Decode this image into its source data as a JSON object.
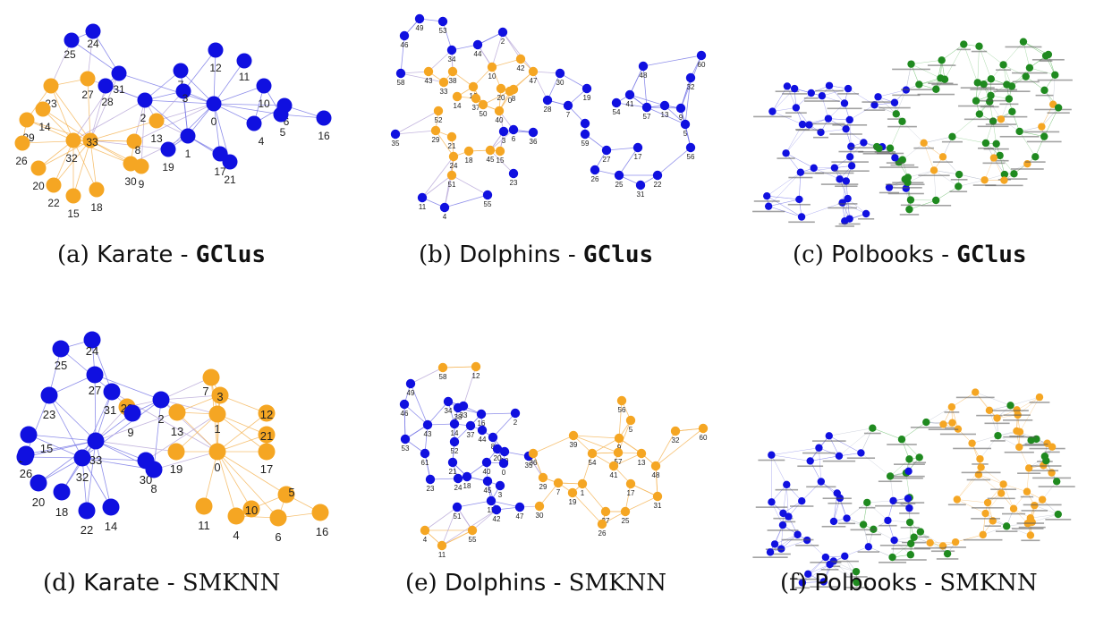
{
  "colors": {
    "blue": "#1010e0",
    "orange": "#f5a623",
    "green": "#1f8a1f",
    "blue_edge": "#7a7ae6",
    "orange_edge": "#f5b65a",
    "green_edge": "#6fbf6f"
  },
  "panels": [
    {
      "id": "a",
      "tag": "(a)",
      "dataset": "Karate",
      "sep": " - ",
      "method": "GClus",
      "method_style": "mono"
    },
    {
      "id": "b",
      "tag": "(b)",
      "dataset": "Dolphins",
      "sep": " - ",
      "method": "GClus",
      "method_style": "mono"
    },
    {
      "id": "c",
      "tag": "(c)",
      "dataset": "Polbooks",
      "sep": " - ",
      "method": "GClus",
      "method_style": "mono"
    },
    {
      "id": "d",
      "tag": "(d)",
      "dataset": "Karate",
      "sep": " - ",
      "method": "SMKNN",
      "method_style": "serif"
    },
    {
      "id": "e",
      "tag": "(e)",
      "dataset": "Dolphins",
      "sep": " - ",
      "method": "SMKNN",
      "method_style": "serif"
    },
    {
      "id": "f",
      "tag": "(f)",
      "dataset": "Polbooks",
      "sep": " - ",
      "method": "SMKNN",
      "method_style": "serif"
    }
  ],
  "karate_gclus": {
    "nodes": [
      {
        "id": "24",
        "c": "blue"
      },
      {
        "id": "25",
        "c": "blue"
      },
      {
        "id": "12",
        "c": "blue"
      },
      {
        "id": "11",
        "c": "blue"
      },
      {
        "id": "27",
        "c": "orange"
      },
      {
        "id": "31",
        "c": "blue"
      },
      {
        "id": "28",
        "c": "blue"
      },
      {
        "id": "23",
        "c": "orange"
      },
      {
        "id": "7",
        "c": "blue"
      },
      {
        "id": "3",
        "c": "blue"
      },
      {
        "id": "10",
        "c": "blue"
      },
      {
        "id": "6",
        "c": "blue"
      },
      {
        "id": "14",
        "c": "orange"
      },
      {
        "id": "2",
        "c": "blue"
      },
      {
        "id": "0",
        "c": "blue"
      },
      {
        "id": "5",
        "c": "blue"
      },
      {
        "id": "29",
        "c": "orange"
      },
      {
        "id": "13",
        "c": "orange"
      },
      {
        "id": "16",
        "c": "blue"
      },
      {
        "id": "4",
        "c": "blue"
      },
      {
        "id": "26",
        "c": "orange"
      },
      {
        "id": "32",
        "c": "orange"
      },
      {
        "id": "33",
        "c": "orange"
      },
      {
        "id": "8",
        "c": "orange"
      },
      {
        "id": "1",
        "c": "blue"
      },
      {
        "id": "19",
        "c": "blue"
      },
      {
        "id": "17",
        "c": "blue"
      },
      {
        "id": "30",
        "c": "orange"
      },
      {
        "id": "9",
        "c": "orange"
      },
      {
        "id": "21",
        "c": "blue"
      },
      {
        "id": "20",
        "c": "orange"
      },
      {
        "id": "22",
        "c": "orange"
      },
      {
        "id": "15",
        "c": "orange"
      },
      {
        "id": "18",
        "c": "orange"
      }
    ]
  },
  "karate_smknn": {
    "nodes": [
      {
        "id": "24",
        "c": "blue"
      },
      {
        "id": "25",
        "c": "blue"
      },
      {
        "id": "27",
        "c": "blue"
      },
      {
        "id": "31",
        "c": "blue"
      },
      {
        "id": "28",
        "c": "orange"
      },
      {
        "id": "2",
        "c": "blue"
      },
      {
        "id": "7",
        "c": "orange"
      },
      {
        "id": "3",
        "c": "orange"
      },
      {
        "id": "23",
        "c": "blue"
      },
      {
        "id": "9",
        "c": "blue"
      },
      {
        "id": "13",
        "c": "orange"
      },
      {
        "id": "1",
        "c": "orange"
      },
      {
        "id": "12",
        "c": "orange"
      },
      {
        "id": "21",
        "c": "orange"
      },
      {
        "id": "15",
        "c": "blue"
      },
      {
        "id": "29",
        "c": "blue"
      },
      {
        "id": "26",
        "c": "blue"
      },
      {
        "id": "33",
        "c": "blue"
      },
      {
        "id": "32",
        "c": "blue"
      },
      {
        "id": "30",
        "c": "blue"
      },
      {
        "id": "8",
        "c": "blue"
      },
      {
        "id": "19",
        "c": "orange"
      },
      {
        "id": "0",
        "c": "orange"
      },
      {
        "id": "17",
        "c": "orange"
      },
      {
        "id": "20",
        "c": "blue"
      },
      {
        "id": "18",
        "c": "blue"
      },
      {
        "id": "22",
        "c": "blue"
      },
      {
        "id": "14",
        "c": "blue"
      },
      {
        "id": "11",
        "c": "orange"
      },
      {
        "id": "4",
        "c": "orange"
      },
      {
        "id": "10",
        "c": "orange"
      },
      {
        "id": "6",
        "c": "orange"
      },
      {
        "id": "5",
        "c": "orange"
      },
      {
        "id": "16",
        "c": "orange"
      }
    ]
  },
  "dolphins_gclus": {
    "nodes": [
      {
        "id": "49",
        "c": "blue"
      },
      {
        "id": "53",
        "c": "blue"
      },
      {
        "id": "46",
        "c": "blue"
      },
      {
        "id": "2",
        "c": "blue"
      },
      {
        "id": "44",
        "c": "blue"
      },
      {
        "id": "34",
        "c": "blue"
      },
      {
        "id": "60",
        "c": "blue"
      },
      {
        "id": "48",
        "c": "blue"
      },
      {
        "id": "58",
        "c": "blue"
      },
      {
        "id": "43",
        "c": "orange"
      },
      {
        "id": "38",
        "c": "orange"
      },
      {
        "id": "10",
        "c": "orange"
      },
      {
        "id": "42",
        "c": "orange"
      },
      {
        "id": "47",
        "c": "orange"
      },
      {
        "id": "30",
        "c": "blue"
      },
      {
        "id": "32",
        "c": "blue"
      },
      {
        "id": "33",
        "c": "orange"
      },
      {
        "id": "16",
        "c": "orange"
      },
      {
        "id": "20",
        "c": "orange"
      },
      {
        "id": "8",
        "c": "orange"
      },
      {
        "id": "19",
        "c": "blue"
      },
      {
        "id": "14",
        "c": "orange"
      },
      {
        "id": "37",
        "c": "orange"
      },
      {
        "id": "50",
        "c": "orange"
      },
      {
        "id": "40",
        "c": "orange"
      },
      {
        "id": "28",
        "c": "blue"
      },
      {
        "id": "7",
        "c": "blue"
      },
      {
        "id": "54",
        "c": "blue"
      },
      {
        "id": "41",
        "c": "blue"
      },
      {
        "id": "57",
        "c": "blue"
      },
      {
        "id": "13",
        "c": "blue"
      },
      {
        "id": "9",
        "c": "blue"
      },
      {
        "id": "52",
        "c": "orange"
      },
      {
        "id": "29",
        "c": "orange"
      },
      {
        "id": "3",
        "c": "blue"
      },
      {
        "id": "1",
        "c": "blue"
      },
      {
        "id": "5",
        "c": "blue"
      },
      {
        "id": "35",
        "c": "blue"
      },
      {
        "id": "21",
        "c": "orange"
      },
      {
        "id": "6",
        "c": "blue"
      },
      {
        "id": "36",
        "c": "blue"
      },
      {
        "id": "24",
        "c": "orange"
      },
      {
        "id": "18",
        "c": "orange"
      },
      {
        "id": "45",
        "c": "orange"
      },
      {
        "id": "15",
        "c": "orange"
      },
      {
        "id": "27",
        "c": "blue"
      },
      {
        "id": "17",
        "c": "blue"
      },
      {
        "id": "56",
        "c": "blue"
      },
      {
        "id": "59",
        "c": "blue"
      },
      {
        "id": "26",
        "c": "blue"
      },
      {
        "id": "25",
        "c": "blue"
      },
      {
        "id": "22",
        "c": "blue"
      },
      {
        "id": "51",
        "c": "orange"
      },
      {
        "id": "23",
        "c": "blue"
      },
      {
        "id": "31",
        "c": "blue"
      },
      {
        "id": "11",
        "c": "blue"
      },
      {
        "id": "55",
        "c": "blue"
      },
      {
        "id": "4",
        "c": "blue"
      },
      {
        "id": "0",
        "c": "orange"
      }
    ]
  },
  "dolphins_smknn": {
    "nodes": [
      {
        "id": "58",
        "c": "orange"
      },
      {
        "id": "12",
        "c": "orange"
      },
      {
        "id": "49",
        "c": "blue"
      },
      {
        "id": "46",
        "c": "blue"
      },
      {
        "id": "34",
        "c": "blue"
      },
      {
        "id": "38",
        "c": "blue"
      },
      {
        "id": "33",
        "c": "blue"
      },
      {
        "id": "16",
        "c": "blue"
      },
      {
        "id": "2",
        "c": "blue"
      },
      {
        "id": "56",
        "c": "orange"
      },
      {
        "id": "43",
        "c": "blue"
      },
      {
        "id": "14",
        "c": "blue"
      },
      {
        "id": "37",
        "c": "blue"
      },
      {
        "id": "44",
        "c": "blue"
      },
      {
        "id": "5",
        "c": "orange"
      },
      {
        "id": "53",
        "c": "blue"
      },
      {
        "id": "52",
        "c": "blue"
      },
      {
        "id": "39",
        "c": "orange"
      },
      {
        "id": "9",
        "c": "orange"
      },
      {
        "id": "8",
        "c": "blue"
      },
      {
        "id": "20",
        "c": "blue"
      },
      {
        "id": "10",
        "c": "blue"
      },
      {
        "id": "35",
        "c": "blue"
      },
      {
        "id": "57",
        "c": "orange"
      },
      {
        "id": "32",
        "c": "orange"
      },
      {
        "id": "60",
        "c": "orange"
      },
      {
        "id": "61",
        "c": "blue"
      },
      {
        "id": "21",
        "c": "blue"
      },
      {
        "id": "54",
        "c": "orange"
      },
      {
        "id": "41",
        "c": "orange"
      },
      {
        "id": "13",
        "c": "orange"
      },
      {
        "id": "48",
        "c": "orange"
      },
      {
        "id": "40",
        "c": "blue"
      },
      {
        "id": "29",
        "c": "orange"
      },
      {
        "id": "7",
        "c": "orange"
      },
      {
        "id": "1",
        "c": "orange"
      },
      {
        "id": "17",
        "c": "orange"
      },
      {
        "id": "45",
        "c": "blue"
      },
      {
        "id": "24",
        "c": "blue"
      },
      {
        "id": "18",
        "c": "blue"
      },
      {
        "id": "3",
        "c": "blue"
      },
      {
        "id": "19",
        "c": "orange"
      },
      {
        "id": "31",
        "c": "orange"
      },
      {
        "id": "36",
        "c": "orange"
      },
      {
        "id": "51",
        "c": "blue"
      },
      {
        "id": "15",
        "c": "blue"
      },
      {
        "id": "42",
        "c": "blue"
      },
      {
        "id": "47",
        "c": "blue"
      },
      {
        "id": "30",
        "c": "orange"
      },
      {
        "id": "27",
        "c": "orange"
      },
      {
        "id": "25",
        "c": "orange"
      },
      {
        "id": "26",
        "c": "orange"
      },
      {
        "id": "23",
        "c": "blue"
      },
      {
        "id": "4",
        "c": "orange"
      },
      {
        "id": "55",
        "c": "orange"
      },
      {
        "id": "11",
        "c": "orange"
      },
      {
        "id": "0",
        "c": "blue"
      }
    ]
  },
  "polbooks": {
    "note": "node labels are too small to read"
  }
}
